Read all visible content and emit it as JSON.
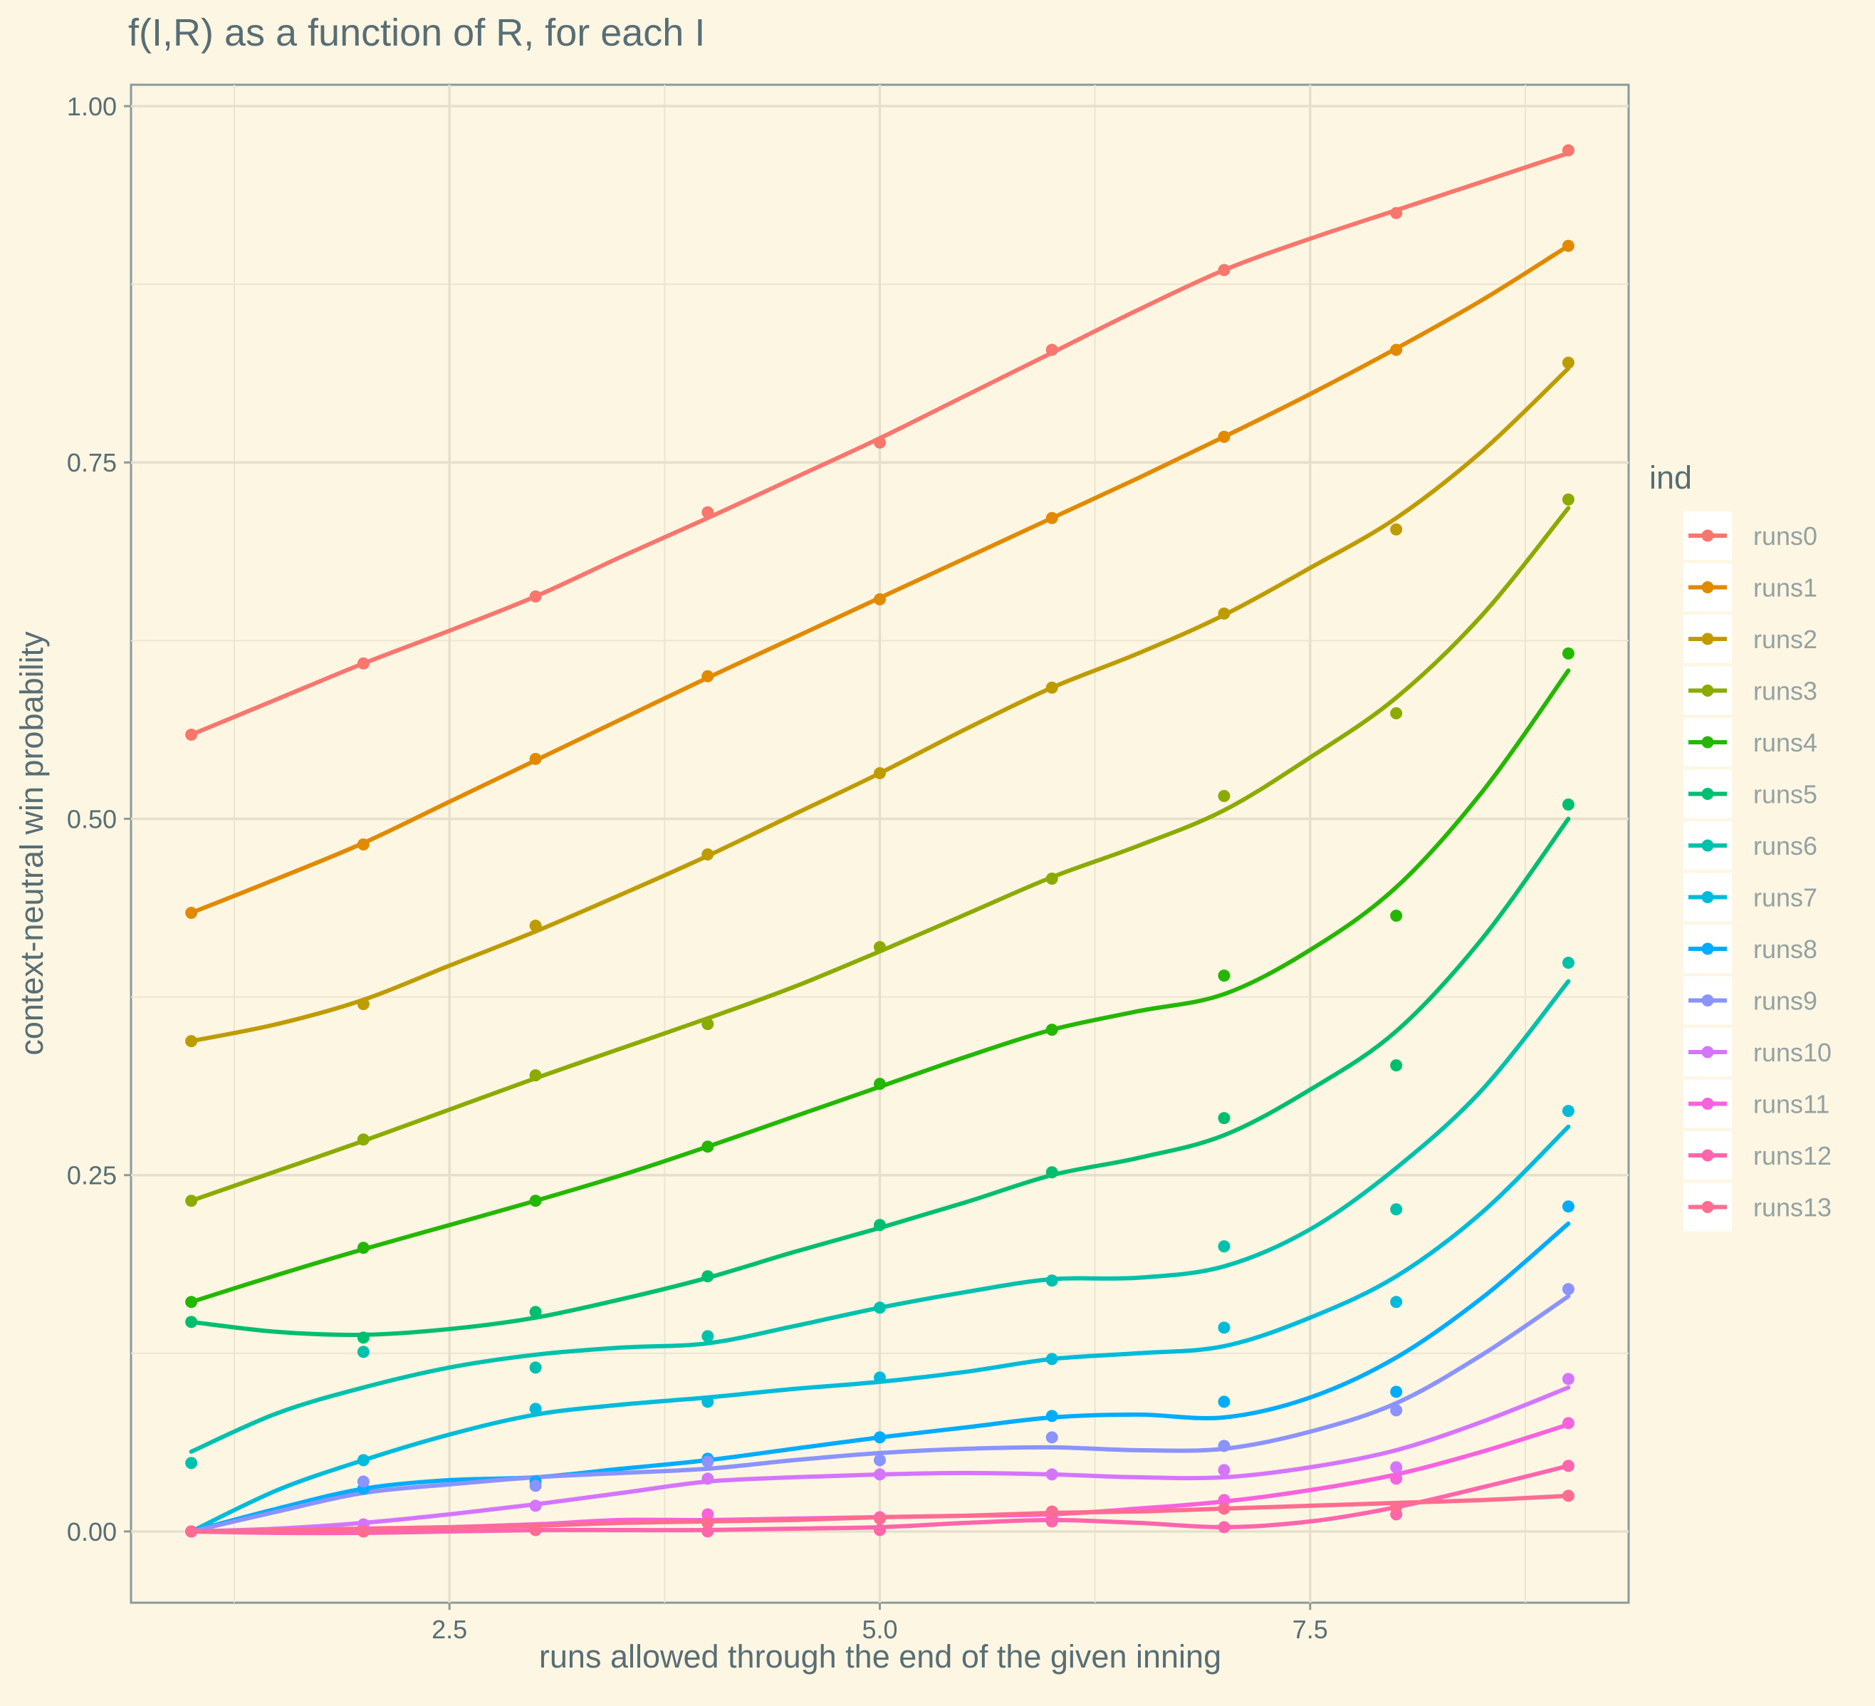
{
  "chart_data": {
    "type": "line",
    "title": "f(I,R) as a function of R, for each I",
    "xlabel": "runs allowed through the end of the given inning",
    "ylabel": "context-neutral win probability",
    "xlim": [
      0.65,
      9.35
    ],
    "ylim": [
      -0.05,
      1.015
    ],
    "x_ticks": [
      2.5,
      5.0,
      7.5
    ],
    "x_tick_labels": [
      "2.5",
      "5.0",
      "7.5"
    ],
    "y_ticks": [
      0.0,
      0.25,
      0.5,
      0.75,
      1.0
    ],
    "y_tick_labels": [
      "0.00",
      "0.25",
      "0.50",
      "0.75",
      "1.00"
    ],
    "grid": true,
    "legend_title": "ind",
    "legend_position": "right",
    "x": [
      1,
      2,
      3,
      4,
      5,
      6,
      7,
      8,
      9
    ],
    "series": [
      {
        "name": "runs0",
        "color": "#F8766D",
        "values": [
          0.559,
          0.609,
          0.656,
          0.715,
          0.764,
          0.829,
          0.885,
          0.925,
          0.969
        ]
      },
      {
        "name": "runs1",
        "color": "#E18A00",
        "values": [
          0.434,
          0.482,
          0.542,
          0.6,
          0.654,
          0.711,
          0.768,
          0.829,
          0.902
        ]
      },
      {
        "name": "runs2",
        "color": "#BE9C00",
        "values": [
          0.344,
          0.37,
          0.425,
          0.475,
          0.532,
          0.592,
          0.644,
          0.703,
          0.82
        ]
      },
      {
        "name": "runs3",
        "color": "#8CAB00",
        "values": [
          0.232,
          0.275,
          0.32,
          0.356,
          0.41,
          0.458,
          0.516,
          0.574,
          0.724
        ]
      },
      {
        "name": "runs4",
        "color": "#24B700",
        "values": [
          0.161,
          0.199,
          0.232,
          0.27,
          0.314,
          0.352,
          0.39,
          0.432,
          0.616
        ]
      },
      {
        "name": "runs5",
        "color": "#00BE70",
        "values": [
          0.147,
          0.136,
          0.154,
          0.179,
          0.215,
          0.252,
          0.29,
          0.327,
          0.51
        ]
      },
      {
        "name": "runs6",
        "color": "#00C1AB",
        "values": [
          0.048,
          0.126,
          0.115,
          0.137,
          0.157,
          0.176,
          0.2,
          0.226,
          0.399
        ]
      },
      {
        "name": "runs7",
        "color": "#00BBDA",
        "values": [
          0.0,
          0.05,
          0.086,
          0.091,
          0.108,
          0.121,
          0.143,
          0.161,
          0.295
        ]
      },
      {
        "name": "runs8",
        "color": "#00ACFC",
        "values": [
          0.0,
          0.03,
          0.035,
          0.051,
          0.066,
          0.081,
          0.091,
          0.098,
          0.228
        ]
      },
      {
        "name": "runs9",
        "color": "#8B93FF",
        "values": [
          0.0,
          0.035,
          0.032,
          0.049,
          0.05,
          0.066,
          0.06,
          0.085,
          0.17
        ]
      },
      {
        "name": "runs10",
        "color": "#D575FE",
        "values": [
          0.0,
          0.005,
          0.018,
          0.037,
          0.04,
          0.04,
          0.043,
          0.045,
          0.107
        ]
      },
      {
        "name": "runs11",
        "color": "#F962DD",
        "values": [
          0.0,
          0.0,
          0.001,
          0.012,
          0.01,
          0.01,
          0.022,
          0.037,
          0.076
        ]
      },
      {
        "name": "runs12",
        "color": "#FF65AC",
        "values": [
          0.0,
          0.0,
          0.001,
          0.0,
          0.001,
          0.007,
          0.003,
          0.012,
          0.046
        ]
      },
      {
        "name": "runs13",
        "color": "#FF6C91",
        "values": [
          0.0,
          0.0,
          0.002,
          0.006,
          0.009,
          0.014,
          0.016,
          0.017,
          0.025
        ]
      }
    ],
    "smoothed_fit": {
      "x": [
        1,
        1.5,
        2,
        2.5,
        3,
        3.5,
        4,
        4.5,
        5,
        5.5,
        6,
        6.5,
        7,
        7.5,
        8,
        8.5,
        9
      ],
      "values": [
        [
          0.559,
          0.584,
          0.609,
          0.632,
          0.656,
          0.684,
          0.711,
          0.739,
          0.767,
          0.797,
          0.827,
          0.857,
          0.885,
          0.907,
          0.927,
          0.947,
          0.967
        ],
        [
          0.434,
          0.458,
          0.483,
          0.512,
          0.541,
          0.57,
          0.599,
          0.627,
          0.655,
          0.683,
          0.711,
          0.739,
          0.768,
          0.798,
          0.83,
          0.864,
          0.902
        ],
        [
          0.344,
          0.356,
          0.373,
          0.397,
          0.421,
          0.447,
          0.474,
          0.503,
          0.532,
          0.563,
          0.592,
          0.616,
          0.643,
          0.676,
          0.711,
          0.758,
          0.816
        ],
        [
          0.232,
          0.253,
          0.274,
          0.296,
          0.318,
          0.339,
          0.36,
          0.382,
          0.407,
          0.433,
          0.459,
          0.481,
          0.506,
          0.543,
          0.585,
          0.643,
          0.718
        ],
        [
          0.161,
          0.18,
          0.198,
          0.215,
          0.232,
          0.25,
          0.27,
          0.291,
          0.312,
          0.333,
          0.352,
          0.365,
          0.377,
          0.408,
          0.452,
          0.519,
          0.604
        ],
        [
          0.147,
          0.14,
          0.138,
          0.142,
          0.15,
          0.163,
          0.178,
          0.196,
          0.213,
          0.231,
          0.25,
          0.262,
          0.278,
          0.31,
          0.351,
          0.416,
          0.5
        ],
        [
          0.056,
          0.083,
          0.101,
          0.115,
          0.124,
          0.129,
          0.132,
          0.144,
          0.157,
          0.168,
          0.177,
          0.178,
          0.186,
          0.212,
          0.255,
          0.31,
          0.386
        ],
        [
          0.0,
          0.029,
          0.05,
          0.068,
          0.082,
          0.089,
          0.094,
          0.1,
          0.105,
          0.112,
          0.121,
          0.125,
          0.13,
          0.15,
          0.179,
          0.224,
          0.284
        ],
        [
          0.0,
          0.016,
          0.03,
          0.036,
          0.038,
          0.044,
          0.05,
          0.058,
          0.066,
          0.073,
          0.08,
          0.082,
          0.08,
          0.094,
          0.122,
          0.164,
          0.216
        ],
        [
          0.0,
          0.014,
          0.027,
          0.033,
          0.038,
          0.041,
          0.044,
          0.05,
          0.055,
          0.058,
          0.059,
          0.057,
          0.058,
          0.07,
          0.09,
          0.124,
          0.165
        ],
        [
          0.0,
          0.002,
          0.006,
          0.012,
          0.019,
          0.027,
          0.035,
          0.038,
          0.04,
          0.041,
          0.04,
          0.038,
          0.038,
          0.045,
          0.057,
          0.077,
          0.101
        ],
        [
          0.0,
          0.0,
          0.001,
          0.003,
          0.005,
          0.008,
          0.008,
          0.009,
          0.01,
          0.011,
          0.012,
          0.016,
          0.021,
          0.029,
          0.04,
          0.056,
          0.075
        ],
        [
          0.0,
          -0.001,
          -0.001,
          0.0,
          0.001,
          0.001,
          0.001,
          0.002,
          0.003,
          0.006,
          0.008,
          0.006,
          0.003,
          0.007,
          0.017,
          0.031,
          0.046
        ],
        [
          0.0,
          0.001,
          0.002,
          0.003,
          0.004,
          0.006,
          0.007,
          0.008,
          0.01,
          0.011,
          0.013,
          0.014,
          0.016,
          0.018,
          0.02,
          0.022,
          0.025
        ]
      ]
    }
  }
}
